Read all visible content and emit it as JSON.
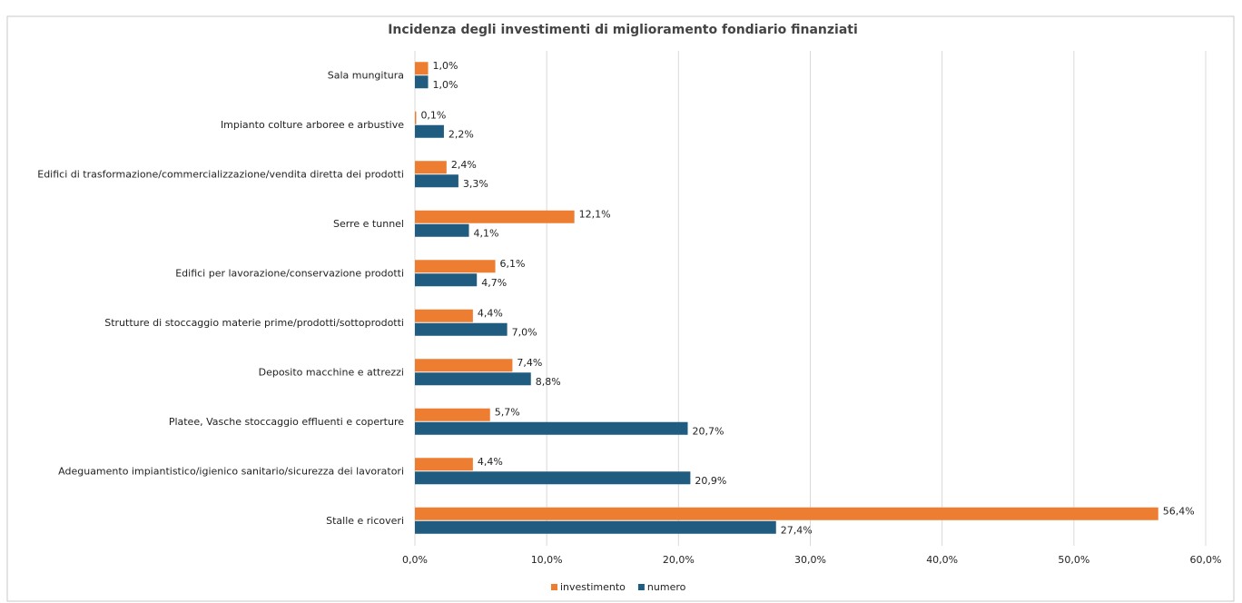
{
  "chart_data": {
    "type": "hbar",
    "title": "Incidenza degli investimenti di miglioramento fondiario finanziati",
    "categories": [
      "Sala mungitura",
      "Impianto colture arboree e arbustive",
      "Edifici di trasformazione/commercializzazione/vendita diretta dei prodotti",
      "Serre e tunnel",
      "Edifici per lavorazione/conservazione prodotti",
      "Strutture di stoccaggio materie prime/prodotti/sottoprodotti",
      "Deposito macchine e attrezzi",
      "Platee, Vasche stoccaggio effluenti e coperture",
      "Adeguamento impiantistico/igienico sanitario/sicurezza dei lavoratori",
      "Stalle e ricoveri"
    ],
    "series": [
      {
        "name": "investimento",
        "color": "#ed7d31",
        "values": [
          1.0,
          0.1,
          2.4,
          12.1,
          6.1,
          4.4,
          7.4,
          5.7,
          4.4,
          56.4
        ],
        "value_labels": [
          "1,0%",
          "0,1%",
          "2,4%",
          "12,1%",
          "6,1%",
          "4,4%",
          "7,4%",
          "5,7%",
          "4,4%",
          "56,4%"
        ]
      },
      {
        "name": "numero",
        "color": "#1f5c80",
        "values": [
          1.0,
          2.2,
          3.3,
          4.1,
          4.7,
          7.0,
          8.8,
          20.7,
          20.9,
          27.4
        ],
        "value_labels": [
          "1,0%",
          "2,2%",
          "3,3%",
          "4,1%",
          "4,7%",
          "7,0%",
          "8,8%",
          "20,7%",
          "20,9%",
          "27,4%"
        ]
      }
    ],
    "xlim": [
      0,
      60
    ],
    "xticks": [
      {
        "value": 0,
        "label": "0,0%"
      },
      {
        "value": 10,
        "label": "10,0%"
      },
      {
        "value": 20,
        "label": "20,0%"
      },
      {
        "value": 30,
        "label": "30,0%"
      },
      {
        "value": 40,
        "label": "40,0%"
      },
      {
        "value": 50,
        "label": "50,0%"
      },
      {
        "value": 60,
        "label": "60,0%"
      }
    ],
    "grid": true,
    "legend": "bottom"
  }
}
